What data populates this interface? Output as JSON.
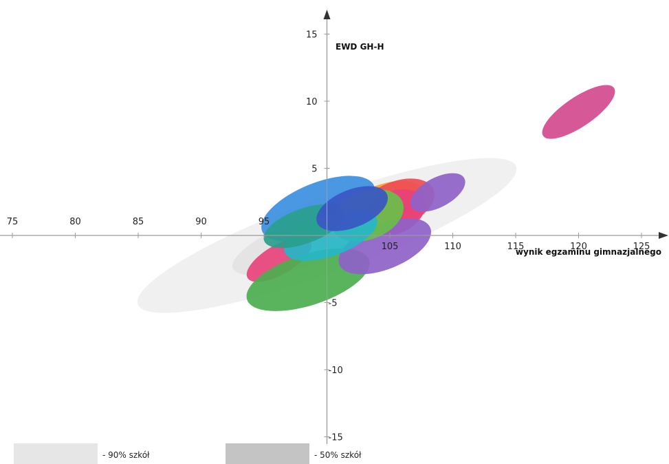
{
  "chart_data": {
    "type": "scatter",
    "title": "",
    "xlabel": "wynik egzaminu gimnazjalnego",
    "ylabel": "EWD GH-H",
    "xlim": [
      75,
      125
    ],
    "ylim": [
      -15,
      15
    ],
    "x_ticks": [
      75,
      80,
      85,
      90,
      95,
      105,
      110,
      115,
      120,
      125
    ],
    "y_ticks": [
      15,
      10,
      5,
      -5,
      -10,
      -15
    ],
    "grid": false,
    "legend": [
      {
        "label": "- 90% szkół",
        "color": "#e6e6e6"
      },
      {
        "label": "- 50% szkół",
        "color": "#c4c4c4"
      }
    ],
    "background_regions": [
      {
        "name": "90% szkół",
        "color": "#eeeeee",
        "cx": 100,
        "cy": 0,
        "rx": 16,
        "ry": 2.8,
        "angle": 20
      },
      {
        "name": "50% szkół",
        "color": "#e2e2e2",
        "cx": 100.5,
        "cy": 0.3,
        "rx": 8.5,
        "ry": 1.9,
        "angle": 20
      }
    ],
    "series": [
      {
        "color": "#e8427a",
        "cx": 96.2,
        "cy": -1.8,
        "rx": 2.9,
        "ry": 1.1,
        "angle": 30
      },
      {
        "color": "#4cae4f",
        "cx": 98.5,
        "cy": -3.3,
        "rx": 5.1,
        "ry": 1.9,
        "angle": 18
      },
      {
        "color": "#f5a623",
        "cx": 104.5,
        "cy": 2.2,
        "rx": 3.4,
        "ry": 1.6,
        "angle": 20
      },
      {
        "color": "#ee4c55",
        "cx": 105.5,
        "cy": 2.3,
        "rx": 3.2,
        "ry": 1.7,
        "angle": 22
      },
      {
        "color": "#e8427a",
        "cx": 105.3,
        "cy": 1.7,
        "rx": 2.6,
        "ry": 1.6,
        "angle": 22
      },
      {
        "color": "#8e62c8",
        "cx": 104.6,
        "cy": -0.8,
        "rx": 3.9,
        "ry": 1.7,
        "angle": 22
      },
      {
        "color": "#8e62c8",
        "cx": 108.8,
        "cy": 3.2,
        "rx": 2.4,
        "ry": 1.1,
        "angle": 28
      },
      {
        "color": "#3c8fe0",
        "cx": 99.3,
        "cy": 2.0,
        "rx": 4.8,
        "ry": 1.9,
        "angle": 22
      },
      {
        "color": "#67c04a",
        "cx": 103.2,
        "cy": 1.5,
        "rx": 3.0,
        "ry": 1.8,
        "angle": 20
      },
      {
        "color": "#26b6c8",
        "cx": 100.3,
        "cy": 0.0,
        "rx": 3.9,
        "ry": 1.5,
        "angle": 20
      },
      {
        "color": "#2a9e8c",
        "cx": 98.2,
        "cy": 0.7,
        "rx": 3.4,
        "ry": 1.3,
        "angle": 20
      },
      {
        "color": "#3a56c4",
        "cx": 102.0,
        "cy": 2.0,
        "rx": 3.0,
        "ry": 1.4,
        "angle": 22
      },
      {
        "color": "#d34a8e",
        "cx": 120.0,
        "cy": 9.2,
        "rx": 3.4,
        "ry": 1.1,
        "angle": 34
      }
    ]
  }
}
